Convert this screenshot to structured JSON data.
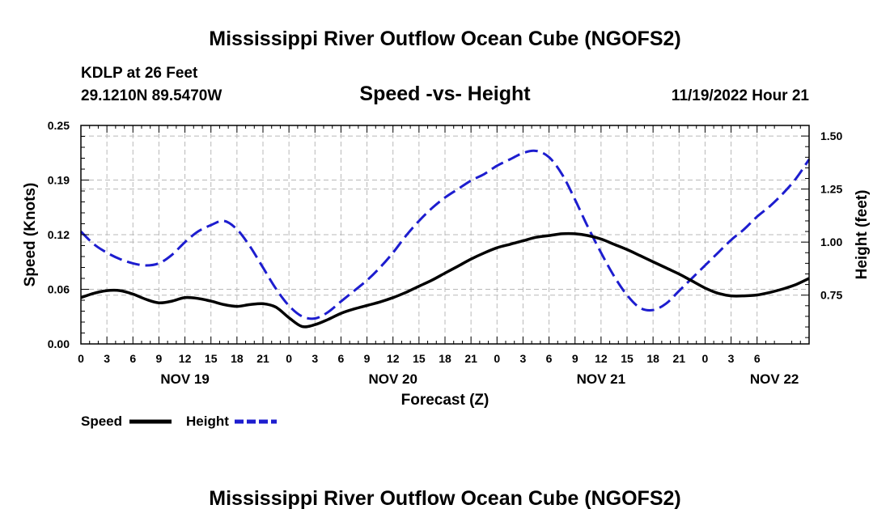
{
  "chart_data": {
    "type": "line",
    "title": "Mississippi River Outflow Ocean Cube (NGOFS2)",
    "footer_title": "Mississippi River Outflow Ocean Cube (NGOFS2)",
    "subtitle": "Speed -vs- Height",
    "station": "KDLP at 26 Feet",
    "location": "29.1210N  89.5470W",
    "run": "11/19/2022 Hour 21",
    "xlabel": "Forecast (Z)",
    "ylabel_left": "Speed (Knots)",
    "ylabel_right": "Height (feet)",
    "x_range": [
      0,
      84
    ],
    "ylim_left": [
      0,
      0.25
    ],
    "ylim_right": [
      0.52,
      1.55
    ],
    "left_ticks": [
      "0.00",
      "0.06",
      "0.12",
      "0.19",
      "0.25"
    ],
    "left_tick_values": [
      0,
      0.0625,
      0.125,
      0.1875,
      0.25
    ],
    "right_ticks": [
      "0.75",
      "1.00",
      "1.25",
      "1.50"
    ],
    "right_tick_values": [
      0.75,
      1.0,
      1.25,
      1.5
    ],
    "x_tick_labels": [
      "0",
      "3",
      "6",
      "9",
      "12",
      "15",
      "18",
      "21",
      "0",
      "3",
      "6",
      "9",
      "12",
      "15",
      "18",
      "21",
      "0",
      "3",
      "6",
      "9",
      "12",
      "15",
      "18",
      "21",
      "0",
      "3",
      "6"
    ],
    "date_labels": [
      {
        "label": "NOV 19",
        "hour": 12
      },
      {
        "label": "NOV 20",
        "hour": 36
      },
      {
        "label": "NOV 21",
        "hour": 60
      },
      {
        "label": "NOV 22",
        "hour": 80
      }
    ],
    "grid": true,
    "legend_position": "bottom-left",
    "series": [
      {
        "name": "Speed",
        "axis": "left",
        "color": "#000000",
        "style": "solid",
        "x": [
          0,
          1.5,
          3,
          4.5,
          6,
          7.5,
          9,
          10.5,
          12,
          13.5,
          15,
          16.5,
          18,
          19.5,
          21,
          22.5,
          24,
          25.5,
          27,
          28.5,
          30,
          31.5,
          33,
          34.5,
          36,
          37.5,
          39,
          40.5,
          42,
          43.5,
          45,
          46.5,
          48,
          49.5,
          51,
          52.5,
          54,
          55.5,
          57,
          58.5,
          60,
          61.5,
          63,
          64.5,
          66,
          67.5,
          69,
          70.5,
          72,
          73.5,
          75,
          76.5,
          78,
          79.5,
          81,
          82.5,
          84
        ],
        "values": [
          0.053,
          0.058,
          0.061,
          0.061,
          0.057,
          0.051,
          0.047,
          0.049,
          0.053,
          0.052,
          0.049,
          0.045,
          0.043,
          0.045,
          0.046,
          0.042,
          0.03,
          0.02,
          0.022,
          0.028,
          0.035,
          0.04,
          0.044,
          0.048,
          0.053,
          0.059,
          0.066,
          0.073,
          0.081,
          0.089,
          0.097,
          0.104,
          0.11,
          0.114,
          0.118,
          0.122,
          0.124,
          0.126,
          0.126,
          0.124,
          0.12,
          0.114,
          0.108,
          0.101,
          0.094,
          0.087,
          0.08,
          0.072,
          0.064,
          0.058,
          0.055,
          0.055,
          0.056,
          0.059,
          0.063,
          0.068,
          0.075
        ]
      },
      {
        "name": "Height",
        "axis": "right",
        "color": "#1d1dcf",
        "style": "dashed",
        "x": [
          0,
          1.5,
          3,
          4.5,
          6,
          7.5,
          9,
          10.5,
          12,
          13.5,
          15,
          16.5,
          18,
          19.5,
          21,
          22.5,
          24,
          25.5,
          27,
          28.5,
          30,
          31.5,
          33,
          34.5,
          36,
          37.5,
          39,
          40.5,
          42,
          43.5,
          45,
          46.5,
          48,
          49.5,
          51,
          52.5,
          54,
          55.5,
          57,
          58.5,
          60,
          61.5,
          63,
          64.5,
          66,
          67.5,
          69,
          70.5,
          72,
          73.5,
          75,
          76.5,
          78,
          79.5,
          81,
          82.5,
          84
        ],
        "values": [
          1.05,
          0.99,
          0.95,
          0.92,
          0.9,
          0.89,
          0.9,
          0.94,
          1.0,
          1.05,
          1.08,
          1.1,
          1.06,
          0.98,
          0.88,
          0.78,
          0.7,
          0.65,
          0.64,
          0.67,
          0.72,
          0.77,
          0.82,
          0.88,
          0.95,
          1.03,
          1.1,
          1.16,
          1.21,
          1.25,
          1.29,
          1.32,
          1.36,
          1.39,
          1.42,
          1.43,
          1.4,
          1.32,
          1.2,
          1.07,
          0.95,
          0.84,
          0.75,
          0.69,
          0.68,
          0.71,
          0.77,
          0.83,
          0.89,
          0.95,
          1.01,
          1.06,
          1.12,
          1.17,
          1.23,
          1.3,
          1.39
        ]
      }
    ]
  }
}
